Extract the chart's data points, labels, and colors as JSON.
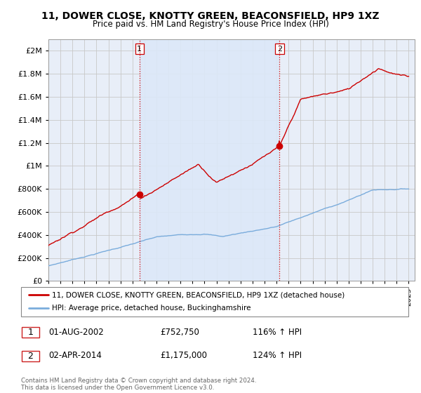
{
  "title": "11, DOWER CLOSE, KNOTTY GREEN, BEACONSFIELD, HP9 1XZ",
  "subtitle": "Price paid vs. HM Land Registry's House Price Index (HPI)",
  "ytick_values": [
    0,
    200000,
    400000,
    600000,
    800000,
    1000000,
    1200000,
    1400000,
    1600000,
    1800000,
    2000000
  ],
  "ylim": [
    0,
    2100000
  ],
  "background_color": "#ffffff",
  "plot_bg_color": "#e8eef8",
  "grid_color": "#c8c8c8",
  "house_color": "#cc0000",
  "hpi_color": "#7aacdc",
  "shade_color": "#dce8f8",
  "marker1_date_x": 2002.583,
  "marker1_y": 752750,
  "marker2_date_x": 2014.25,
  "marker2_y": 1175000,
  "legend_line1": "11, DOWER CLOSE, KNOTTY GREEN, BEACONSFIELD, HP9 1XZ (detached house)",
  "legend_line2": "HPI: Average price, detached house, Buckinghamshire",
  "footer": "Contains HM Land Registry data © Crown copyright and database right 2024.\nThis data is licensed under the Open Government Licence v3.0.",
  "xmin": 1995,
  "xmax": 2025.5
}
